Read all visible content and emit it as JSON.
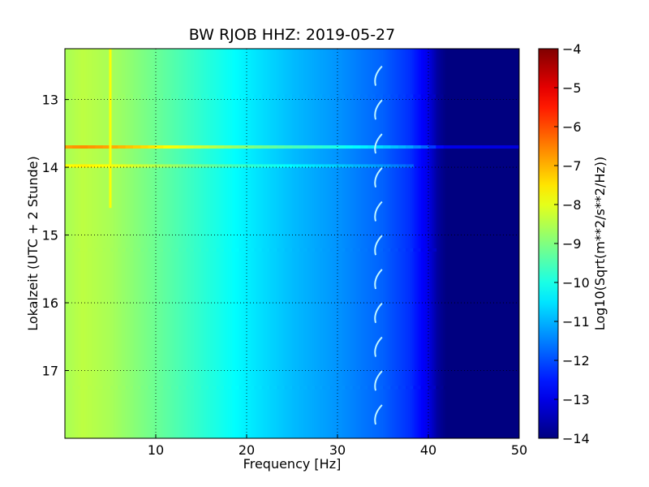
{
  "chart_data": {
    "type": "heatmap",
    "title": "BW RJOB HHZ: 2019-05-27",
    "xlabel": "Frequency [Hz]",
    "ylabel": "Lokalzeit (UTC + 2 Stunde)",
    "xlim": [
      0,
      50
    ],
    "ylim": [
      12.25,
      18.0
    ],
    "y_inverted": true,
    "x_ticks": [
      10,
      20,
      30,
      40,
      50
    ],
    "y_ticks": [
      13,
      14,
      15,
      16,
      17
    ],
    "grid": true,
    "grid_style": "dotted",
    "colormap": "jet",
    "colorbar": {
      "label": "Log10(Sqrt(m**2/s**2/Hz))",
      "range": [
        -14,
        -4
      ],
      "ticks": [
        -4,
        -5,
        -6,
        -7,
        -8,
        -9,
        -10,
        -11,
        -12,
        -13,
        -14
      ]
    },
    "background_profile": {
      "frequency_hz": [
        0,
        2,
        5,
        10,
        15,
        20,
        25,
        30,
        35,
        38,
        40,
        41,
        42,
        50
      ],
      "level": [
        -8.6,
        -8.4,
        -8.6,
        -9.2,
        -9.8,
        -10.4,
        -10.9,
        -11.3,
        -11.8,
        -12.3,
        -13.0,
        -13.7,
        -14.0,
        -14.0
      ]
    },
    "features": [
      {
        "kind": "horizontal_band",
        "time_h": 13.7,
        "peak_level": -6.8,
        "extent_hz": 50
      },
      {
        "kind": "horizontal_band",
        "time_h": 13.98,
        "peak_level": -7.8,
        "extent_hz": 38
      },
      {
        "kind": "horizontal_band",
        "time_h": 12.95,
        "peak_level": -10.3,
        "extent_hz": 42
      },
      {
        "kind": "horizontal_band",
        "time_h": 17.25,
        "peak_level": -9.6,
        "extent_hz": 42
      },
      {
        "kind": "horizontal_band",
        "time_h": 15.22,
        "peak_level": -10.5,
        "extent_hz": 40
      },
      {
        "kind": "vertical_line",
        "frequency_hz": 5,
        "peak_level": -7.8
      },
      {
        "kind": "drifting_tone",
        "frequency_hz": 34.5,
        "peak_level": -10.0
      }
    ]
  }
}
